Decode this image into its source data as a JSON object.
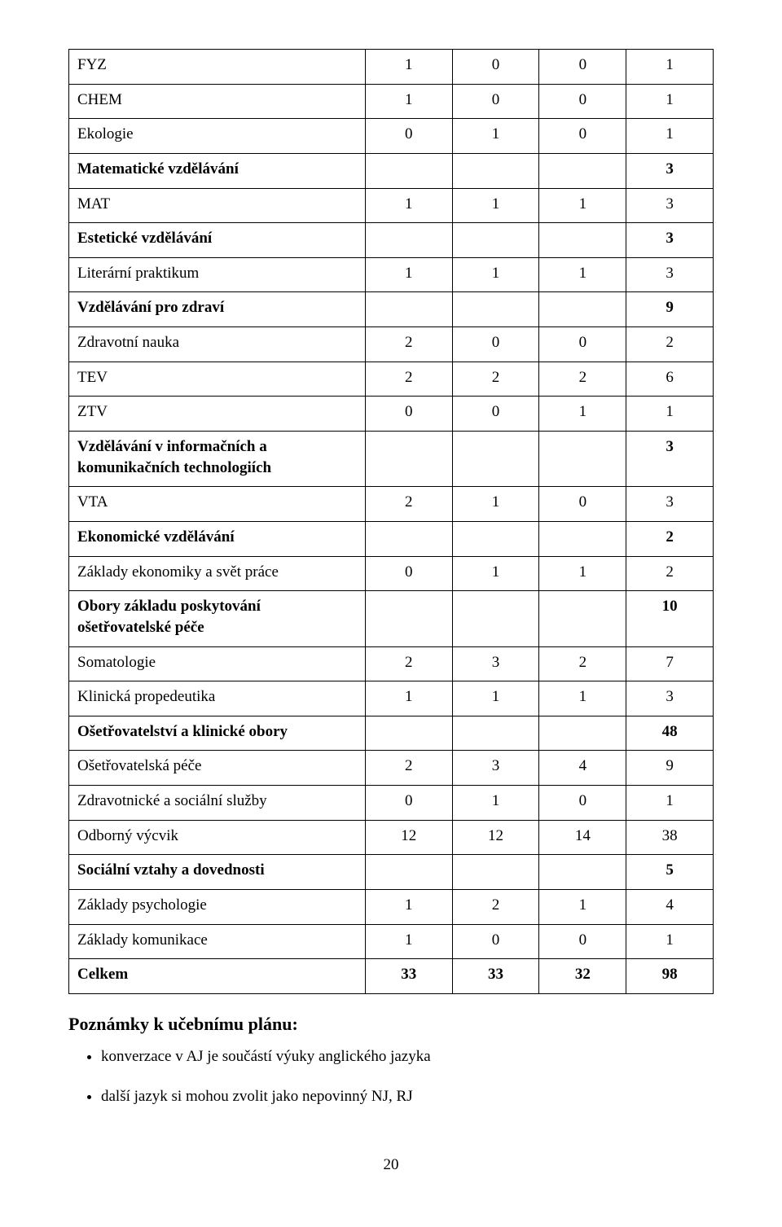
{
  "table": {
    "columns": 5,
    "rows": [
      {
        "label": "FYZ",
        "bold": false,
        "cells": [
          "1",
          "0",
          "0",
          "1"
        ]
      },
      {
        "label": "CHEM",
        "bold": false,
        "cells": [
          "1",
          "0",
          "0",
          "1"
        ]
      },
      {
        "label": "Ekologie",
        "bold": false,
        "cells": [
          "0",
          "1",
          "0",
          "1"
        ]
      },
      {
        "label": "Matematické vzdělávání",
        "bold": true,
        "cells": [
          "",
          "",
          "",
          "3"
        ]
      },
      {
        "label": "MAT",
        "bold": false,
        "cells": [
          "1",
          "1",
          "1",
          "3"
        ]
      },
      {
        "label": "Estetické vzdělávání",
        "bold": true,
        "cells": [
          "",
          "",
          "",
          "3"
        ]
      },
      {
        "label": "Literární praktikum",
        "bold": false,
        "cells": [
          "1",
          "1",
          "1",
          "3"
        ]
      },
      {
        "label": "Vzdělávání pro zdraví",
        "bold": true,
        "cells": [
          "",
          "",
          "",
          "9"
        ]
      },
      {
        "label": "Zdravotní nauka",
        "bold": false,
        "cells": [
          "2",
          "0",
          "0",
          "2"
        ]
      },
      {
        "label": "TEV",
        "bold": false,
        "cells": [
          "2",
          "2",
          "2",
          "6"
        ]
      },
      {
        "label": "ZTV",
        "bold": false,
        "cells": [
          "0",
          "0",
          "1",
          "1"
        ]
      },
      {
        "label": "Vzdělávání v informačních a komunikačních technologiích",
        "bold": true,
        "cells": [
          "",
          "",
          "",
          "3"
        ]
      },
      {
        "label": "VTA",
        "bold": false,
        "cells": [
          "2",
          "1",
          "0",
          "3"
        ]
      },
      {
        "label": "Ekonomické vzdělávání",
        "bold": true,
        "cells": [
          "",
          "",
          "",
          "2"
        ]
      },
      {
        "label": "Základy ekonomiky a svět práce",
        "bold": false,
        "cells": [
          "0",
          "1",
          "1",
          "2"
        ]
      },
      {
        "label": "Obory základu poskytování ošetřovatelské péče",
        "bold": true,
        "cells": [
          "",
          "",
          "",
          "10"
        ]
      },
      {
        "label": "Somatologie",
        "bold": false,
        "cells": [
          "2",
          "3",
          "2",
          "7"
        ]
      },
      {
        "label": "Klinická propedeutika",
        "bold": false,
        "cells": [
          "1",
          "1",
          "1",
          "3"
        ]
      },
      {
        "label": "Ošetřovatelství a klinické obory",
        "bold": true,
        "cells": [
          "",
          "",
          "",
          "48"
        ]
      },
      {
        "label": "Ošetřovatelská péče",
        "bold": false,
        "cells": [
          "2",
          "3",
          "4",
          "9"
        ]
      },
      {
        "label": "Zdravotnické a sociální služby",
        "bold": false,
        "cells": [
          "0",
          "1",
          "0",
          "1"
        ]
      },
      {
        "label": "Odborný výcvik",
        "bold": false,
        "cells": [
          "12",
          "12",
          "14",
          "38"
        ]
      },
      {
        "label": "Sociální vztahy a dovednosti",
        "bold": true,
        "cells": [
          "",
          "",
          "",
          "5"
        ]
      },
      {
        "label": "Základy psychologie",
        "bold": false,
        "cells": [
          "1",
          "2",
          "1",
          "4"
        ]
      },
      {
        "label": "Základy komunikace",
        "bold": false,
        "cells": [
          "1",
          "0",
          "0",
          "1"
        ]
      },
      {
        "label": "Celkem",
        "bold": true,
        "cells": [
          "33",
          "33",
          "32",
          "98"
        ]
      }
    ]
  },
  "notes": {
    "heading": "Poznámky k učebnímu plánu:",
    "items": [
      "konverzace v AJ je součástí výuky anglického jazyka",
      "další jazyk si mohou zvolit jako nepovinný NJ, RJ"
    ]
  },
  "page_number": "20"
}
